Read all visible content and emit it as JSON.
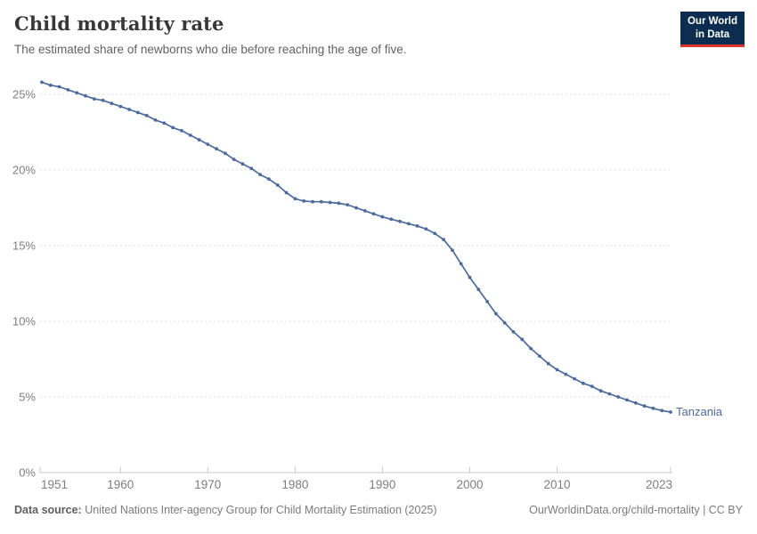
{
  "header": {
    "title": "Child mortality rate",
    "subtitle": "The estimated share of newborns who die before reaching the age of five.",
    "logo": {
      "line1": "Our World",
      "line2": "in Data"
    }
  },
  "chart_data": {
    "type": "line",
    "title": "Child mortality rate",
    "xlabel": "",
    "ylabel": "",
    "grid": "horizontal-dashed",
    "xlim": [
      1951,
      2023
    ],
    "ylim": [
      0,
      26
    ],
    "x_ticks": [
      1951,
      1960,
      1970,
      1980,
      1990,
      2000,
      2010,
      2023
    ],
    "x_tick_labels": [
      "1951",
      "1960",
      "1970",
      "1980",
      "1990",
      "2000",
      "2010",
      "2023"
    ],
    "y_ticks": [
      0,
      5,
      10,
      15,
      20,
      25
    ],
    "y_tick_labels": [
      "0%",
      "5%",
      "10%",
      "15%",
      "20%",
      "25%"
    ],
    "series": [
      {
        "name": "Tanzania",
        "color": "#4c6a9c",
        "x": [
          1951,
          1952,
          1953,
          1954,
          1955,
          1956,
          1957,
          1958,
          1959,
          1960,
          1961,
          1962,
          1963,
          1964,
          1965,
          1966,
          1967,
          1968,
          1969,
          1970,
          1971,
          1972,
          1973,
          1974,
          1975,
          1976,
          1977,
          1978,
          1979,
          1980,
          1981,
          1982,
          1983,
          1984,
          1985,
          1986,
          1987,
          1988,
          1989,
          1990,
          1991,
          1992,
          1993,
          1994,
          1995,
          1996,
          1997,
          1998,
          1999,
          2000,
          2001,
          2002,
          2003,
          2004,
          2005,
          2006,
          2007,
          2008,
          2009,
          2010,
          2011,
          2012,
          2013,
          2014,
          2015,
          2016,
          2017,
          2018,
          2019,
          2020,
          2021,
          2022,
          2023
        ],
        "values": [
          25.8,
          25.6,
          25.5,
          25.3,
          25.1,
          24.9,
          24.7,
          24.6,
          24.4,
          24.2,
          24.0,
          23.8,
          23.6,
          23.3,
          23.1,
          22.8,
          22.6,
          22.3,
          22.0,
          21.7,
          21.4,
          21.1,
          20.7,
          20.4,
          20.1,
          19.7,
          19.4,
          19.0,
          18.5,
          18.1,
          17.95,
          17.9,
          17.9,
          17.85,
          17.8,
          17.7,
          17.5,
          17.3,
          17.1,
          16.9,
          16.75,
          16.6,
          16.45,
          16.3,
          16.1,
          15.8,
          15.4,
          14.7,
          13.8,
          12.9,
          12.1,
          11.3,
          10.5,
          9.9,
          9.3,
          8.8,
          8.2,
          7.7,
          7.2,
          6.8,
          6.5,
          6.2,
          5.9,
          5.7,
          5.4,
          5.2,
          5.0,
          4.8,
          4.6,
          4.4,
          4.25,
          4.1,
          4.0
        ]
      }
    ],
    "end_label": "Tanzania",
    "legend_position": "end-of-line"
  },
  "colors": {
    "line": "#4c6a9c",
    "grid": "#dcdcdc",
    "axis": "#c8c8c8",
    "tick_text": "#7e7e7e",
    "logo_bg": "#0c2d4f",
    "logo_bar": "#dc352c"
  },
  "footer": {
    "source_label": "Data source:",
    "source_text": " United Nations Inter-agency Group for Child Mortality Estimation (2025)",
    "right_text": "OurWorldinData.org/child-mortality | CC BY"
  }
}
